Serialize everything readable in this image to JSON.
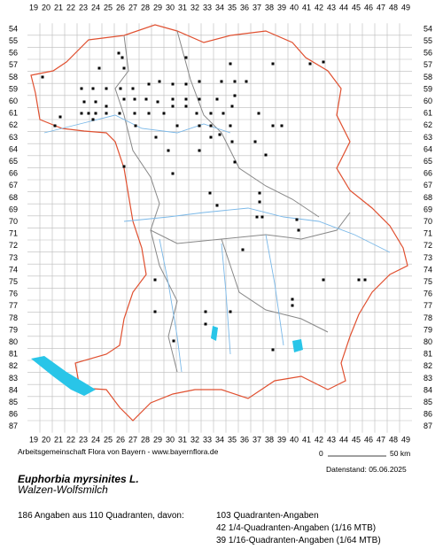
{
  "map": {
    "columns": [
      19,
      20,
      21,
      22,
      23,
      24,
      25,
      26,
      27,
      28,
      29,
      30,
      31,
      32,
      33,
      34,
      35,
      36,
      37,
      38,
      39,
      40,
      41,
      42,
      43,
      44,
      45,
      46,
      47,
      48,
      49
    ],
    "rows": [
      54,
      55,
      56,
      57,
      58,
      59,
      60,
      61,
      62,
      63,
      64,
      65,
      66,
      67,
      68,
      69,
      70,
      71,
      72,
      73,
      74,
      75,
      76,
      77,
      78,
      79,
      80,
      81,
      82,
      83,
      84,
      85,
      86,
      87
    ],
    "credit": "Arbeitsgemeinschaft Flora von Bayern - www.bayernflora.de",
    "scale": {
      "start": "0",
      "end": "50 km"
    },
    "date": "Datenstand: 05.06.2025",
    "species": "Euphorbia myrsinites L.",
    "common_name": "Walzen-Wolfsmilch",
    "stats": {
      "summary": "186 Angaben aus 110 Quadranten, davon:",
      "lines": [
        "103 Quadranten-Angaben",
        "42 1/4-Quadranten-Angaben (1/16 MTB)",
        "39 1/16-Quadranten-Angaben (1/64 MTB)"
      ]
    }
  }
}
